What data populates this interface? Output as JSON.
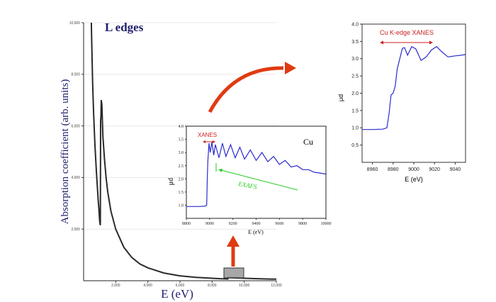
{
  "colors": {
    "main_curve": "#2a2a2a",
    "main_label": "#1f1f6e",
    "blue_curve": "#2b2bd0",
    "red_accent": "#e03a12",
    "green_accent": "#22cc22",
    "inset_label": "#cc1e1e"
  },
  "chart_data": [
    {
      "type": "line",
      "title": "L edges",
      "xlabel": "E (eV)",
      "ylabel": "Absorption coefficient (arb. units)",
      "xlim": [
        0,
        12000
      ],
      "ylim": [
        0,
        10000
      ],
      "xticks": [
        "2,000",
        "4,000",
        "6,000",
        "8,000",
        "10,000",
        "12,000"
      ],
      "yticks": [
        "2,000",
        "4,000",
        "6,000",
        "8,000",
        "10,000"
      ],
      "series": [
        {
          "x": [
            480,
            520,
            560,
            620,
            700,
            800,
            900,
            950,
            1000,
            1040,
            1060,
            1080,
            1100,
            1120,
            1140,
            1200,
            1300,
            1400,
            1500,
            1700,
            2000,
            2500,
            3000,
            3500,
            4000,
            5000,
            6000,
            7000,
            8000,
            8500,
            8979,
            9000,
            10000,
            11000,
            12000
          ],
          "y": [
            10000,
            8800,
            7700,
            6500,
            5300,
            4200,
            3200,
            2800,
            2300,
            2150,
            6200,
            6400,
            7000,
            6900,
            6800,
            5600,
            4700,
            4000,
            3450,
            2700,
            2000,
            1300,
            900,
            650,
            500,
            300,
            190,
            130,
            95,
            80,
            70,
            120,
            95,
            75,
            60
          ]
        }
      ]
    },
    {
      "type": "line",
      "title": "Cu",
      "xlabel": "E (eV)",
      "ylabel": "μd",
      "xlim": [
        8800,
        10000
      ],
      "ylim": [
        0.5,
        4.0
      ],
      "xticks": [
        8800,
        9000,
        9200,
        9400,
        9600,
        9800,
        10000
      ],
      "yticks": [
        1.0,
        1.5,
        2.0,
        2.5,
        3.0,
        3.5,
        4.0
      ],
      "annotations": [
        "XANES",
        "EXAFS"
      ],
      "series": [
        {
          "x": [
            8800,
            8900,
            8960,
            8975,
            8980,
            8985,
            8995,
            9005,
            9020,
            9035,
            9050,
            9080,
            9110,
            9140,
            9180,
            9220,
            9260,
            9300,
            9350,
            9400,
            9450,
            9500,
            9550,
            9600,
            9650,
            9700,
            9750,
            9800,
            9850,
            9900,
            9950,
            10000
          ],
          "y": [
            0.95,
            0.95,
            0.96,
            1.0,
            2.1,
            2.7,
            3.35,
            3.0,
            3.4,
            2.9,
            3.3,
            2.8,
            3.35,
            2.85,
            3.3,
            2.8,
            3.2,
            2.75,
            3.1,
            2.7,
            3.0,
            2.65,
            2.85,
            2.55,
            2.7,
            2.45,
            2.5,
            2.35,
            2.35,
            2.25,
            2.22,
            2.18
          ]
        }
      ]
    },
    {
      "type": "line",
      "title": "",
      "xlabel": "E (eV)",
      "ylabel": "μd",
      "xlim": [
        8950,
        9050
      ],
      "ylim": [
        0,
        4.0
      ],
      "xticks": [
        8960,
        8980,
        9000,
        9020,
        9040
      ],
      "yticks": [
        0.5,
        1.0,
        1.5,
        2.0,
        2.5,
        3.0,
        3.5,
        4.0
      ],
      "annotations": [
        "Cu K-edge XANES"
      ],
      "series": [
        {
          "x": [
            8950,
            8960,
            8970,
            8974,
            8976,
            8978,
            8980,
            8982,
            8984,
            8986,
            8989,
            8991,
            8994,
            8998,
            9002,
            9007,
            9012,
            9017,
            9022,
            9027,
            9033,
            9040,
            9046,
            9050
          ],
          "y": [
            0.95,
            0.95,
            0.96,
            1.0,
            1.4,
            1.95,
            2.0,
            2.2,
            2.7,
            2.95,
            3.3,
            3.32,
            3.1,
            3.35,
            3.28,
            2.95,
            3.05,
            3.25,
            3.35,
            3.2,
            3.05,
            3.08,
            3.1,
            3.12
          ]
        }
      ]
    }
  ]
}
